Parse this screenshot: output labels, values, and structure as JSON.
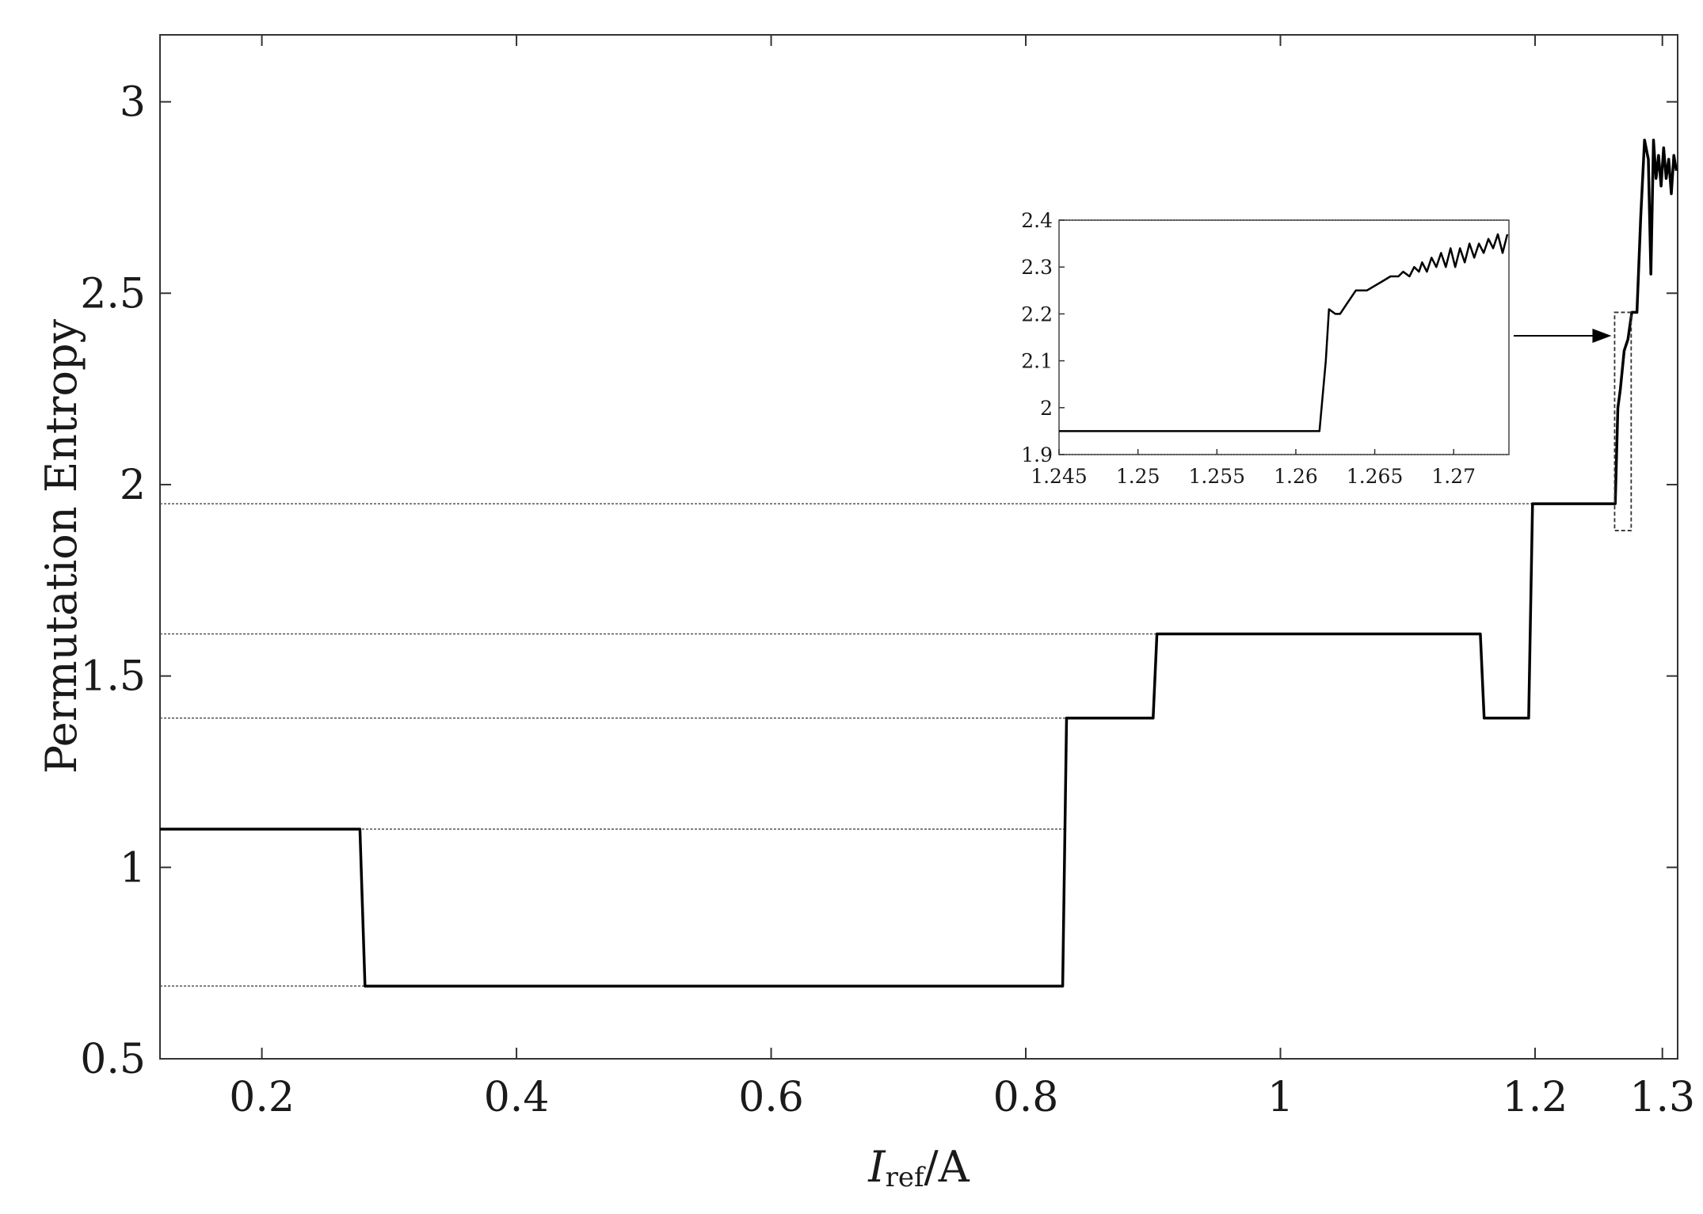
{
  "chart_data": [
    {
      "type": "line",
      "title": "",
      "xlabel": {
        "symbol": "I",
        "subscript": "ref",
        "unit": "/A"
      },
      "ylabel": "Permutation Entropy",
      "xlim": [
        0.12,
        1.312
      ],
      "ylim": [
        0.5,
        3.175
      ],
      "xticks": [
        0.2,
        0.4,
        0.6,
        0.8,
        1.0,
        1.2,
        1.3
      ],
      "xtick_labels": [
        "0.2",
        "0.4",
        "0.6",
        "0.8",
        "1",
        "1.2",
        "1.3"
      ],
      "yticks": [
        0.5,
        1.0,
        1.5,
        2.0,
        2.5,
        3.0
      ],
      "ytick_labels": [
        "0.5",
        "1",
        "1.5",
        "2",
        "2.5",
        "3"
      ],
      "grid": false,
      "series": [
        {
          "x": [
            0.12,
            0.277,
            0.281,
            0.829,
            0.832,
            0.9,
            0.903,
            1.157,
            1.16,
            1.195,
            1.198,
            1.263,
            1.265,
            1.267,
            1.27,
            1.273,
            1.276,
            1.28,
            1.283,
            1.286,
            1.289,
            1.291,
            1.293,
            1.295,
            1.297,
            1.299,
            1.301,
            1.303,
            1.305,
            1.307,
            1.309,
            1.311
          ],
          "y": [
            1.1,
            1.1,
            0.69,
            0.69,
            1.39,
            1.39,
            1.61,
            1.61,
            1.39,
            1.39,
            1.95,
            1.95,
            2.2,
            2.25,
            2.35,
            2.38,
            2.45,
            2.45,
            2.7,
            2.9,
            2.85,
            2.55,
            2.9,
            2.8,
            2.86,
            2.78,
            2.88,
            2.8,
            2.85,
            2.76,
            2.86,
            2.82
          ]
        }
      ],
      "reference_levels": [
        0.69,
        1.1,
        1.39,
        1.61,
        1.95
      ],
      "zoom_region": {
        "x": [
          1.2625,
          1.2755
        ],
        "y": [
          1.88,
          2.45
        ]
      }
    },
    {
      "type": "line",
      "title": "",
      "xlim": [
        1.245,
        1.2735
      ],
      "ylim": [
        1.9,
        2.4
      ],
      "xticks": [
        1.245,
        1.25,
        1.255,
        1.26,
        1.265,
        1.27
      ],
      "xtick_labels": [
        "1.245",
        "1.25",
        "1.255",
        "1.26",
        "1.265",
        "1.27"
      ],
      "yticks": [
        1.9,
        2.0,
        2.1,
        2.2,
        2.3,
        2.4
      ],
      "ytick_labels": [
        "1.9",
        "2",
        "2.1",
        "2.2",
        "2.3",
        "2.4"
      ],
      "grid": false,
      "series": [
        {
          "x": [
            1.245,
            1.2615,
            1.2619,
            1.2621,
            1.2625,
            1.2628,
            1.2632,
            1.2638,
            1.2645,
            1.2655,
            1.266,
            1.2665,
            1.2668,
            1.2672,
            1.2675,
            1.2678,
            1.268,
            1.2683,
            1.2686,
            1.2689,
            1.2692,
            1.2695,
            1.2698,
            1.2701,
            1.2704,
            1.2707,
            1.271,
            1.2713,
            1.2716,
            1.2719,
            1.2722,
            1.2725,
            1.2728,
            1.2731,
            1.2734
          ],
          "y": [
            1.95,
            1.95,
            2.1,
            2.21,
            2.2,
            2.2,
            2.22,
            2.25,
            2.25,
            2.27,
            2.28,
            2.28,
            2.29,
            2.28,
            2.3,
            2.29,
            2.31,
            2.29,
            2.32,
            2.3,
            2.33,
            2.3,
            2.34,
            2.3,
            2.34,
            2.31,
            2.35,
            2.32,
            2.35,
            2.33,
            2.36,
            2.34,
            2.37,
            2.33,
            2.37
          ]
        }
      ]
    }
  ]
}
